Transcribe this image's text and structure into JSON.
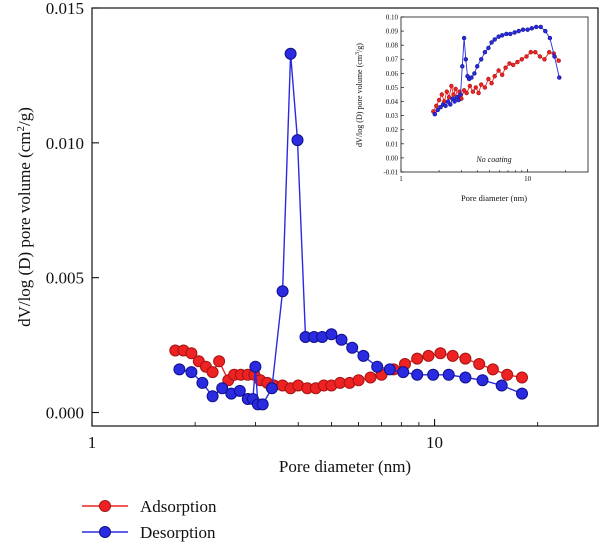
{
  "colors": {
    "adsorption": "#ee2222",
    "adsorption_edge": "#a51414",
    "desorption": "#2a2ae0",
    "desorption_edge": "#10108a"
  },
  "chart_data": [
    {
      "type": "line",
      "x_scale": "log",
      "xlabel": "Pore diameter (nm)",
      "ylabel": "dV/log (D) pore volume (cm2/g)",
      "ylabel_parts": {
        "main": "dV/log (D) pore volume (cm",
        "sup": "2",
        "end": "/g)"
      },
      "xlim": [
        1,
        30
      ],
      "ylim": [
        -0.0005,
        0.015
      ],
      "x_ticks": [
        1,
        10
      ],
      "x_tick_labels": [
        "1",
        "10"
      ],
      "y_ticks": [
        0.0,
        0.005,
        0.01,
        0.015
      ],
      "y_tick_labels": [
        "0.000",
        "0.005",
        "0.010",
        "0.015"
      ],
      "legend": {
        "position": "below-left",
        "entries": [
          "Adsorption",
          "Desorption"
        ]
      },
      "series": [
        {
          "name": "Adsorption",
          "x": [
            1.75,
            1.85,
            1.95,
            2.05,
            2.15,
            2.25,
            2.35,
            2.5,
            2.6,
            2.72,
            2.85,
            2.98,
            3.1,
            3.25,
            3.4,
            3.6,
            3.8,
            4.0,
            4.25,
            4.5,
            4.75,
            5.0,
            5.3,
            5.65,
            6.0,
            6.5,
            7.0,
            7.6,
            8.2,
            8.9,
            9.6,
            10.4,
            11.3,
            12.3,
            13.5,
            14.8,
            16.3,
            18.0
          ],
          "y": [
            0.0023,
            0.0023,
            0.0022,
            0.0019,
            0.0017,
            0.0015,
            0.0019,
            0.0012,
            0.0014,
            0.0014,
            0.0014,
            0.0014,
            0.0012,
            0.0011,
            0.001,
            0.001,
            0.0009,
            0.001,
            0.0009,
            0.0009,
            0.001,
            0.001,
            0.0011,
            0.0011,
            0.0012,
            0.0013,
            0.0014,
            0.0016,
            0.0018,
            0.002,
            0.0021,
            0.0022,
            0.0021,
            0.002,
            0.0018,
            0.0016,
            0.0014,
            0.0013
          ]
        },
        {
          "name": "Desorption",
          "x": [
            1.8,
            1.95,
            2.1,
            2.25,
            2.4,
            2.55,
            2.7,
            2.85,
            2.95,
            3.0,
            3.05,
            3.15,
            3.35,
            3.6,
            3.8,
            3.98,
            4.2,
            4.45,
            4.7,
            5.0,
            5.35,
            5.75,
            6.2,
            6.8,
            7.4,
            8.1,
            8.9,
            9.9,
            11.0,
            12.3,
            13.8,
            15.7,
            18.0
          ],
          "y": [
            0.0016,
            0.0015,
            0.0011,
            0.0006,
            0.0009,
            0.0007,
            0.0008,
            0.0005,
            0.0005,
            0.0017,
            0.0003,
            0.0003,
            0.0009,
            0.0045,
            0.0133,
            0.0101,
            0.0028,
            0.0028,
            0.0028,
            0.0029,
            0.0027,
            0.0024,
            0.0021,
            0.0017,
            0.0016,
            0.0015,
            0.0014,
            0.0014,
            0.0014,
            0.0013,
            0.0012,
            0.001,
            0.0007
          ]
        }
      ]
    },
    {
      "type": "line",
      "x_scale": "log",
      "xlabel": "Pore diameter (nm)",
      "ylabel": "dV/log (D) pore volume (cm3/g)",
      "ylabel_parts": {
        "main": "dV/log (D) pore volume (cm",
        "sup": "3",
        "end": "/g)"
      },
      "annotation": "No coating",
      "xlim": [
        1,
        30
      ],
      "ylim": [
        -0.01,
        0.1
      ],
      "x_ticks": [
        1,
        10
      ],
      "x_tick_labels": [
        "1",
        "10"
      ],
      "y_ticks": [
        -0.01,
        0.0,
        0.01,
        0.02,
        0.03,
        0.04,
        0.05,
        0.06,
        0.07,
        0.08,
        0.09,
        0.1
      ],
      "y_tick_labels": [
        "-0.01",
        "0.00",
        "0.01",
        "0.02",
        "0.03",
        "0.04",
        "0.05",
        "0.06",
        "0.07",
        "0.08",
        "0.09",
        "0.10"
      ],
      "series": [
        {
          "name": "Adsorption",
          "x": [
            1.8,
            1.9,
            2.0,
            2.1,
            2.2,
            2.3,
            2.4,
            2.5,
            2.6,
            2.7,
            2.8,
            2.9,
            3.0,
            3.15,
            3.3,
            3.5,
            3.7,
            3.9,
            4.1,
            4.3,
            4.6,
            4.9,
            5.2,
            5.5,
            5.9,
            6.3,
            6.7,
            7.2,
            7.7,
            8.3,
            9.0,
            9.8,
            10.6,
            11.5,
            12.5,
            13.6,
            14.8,
            16.1,
            17.6
          ],
          "y": [
            0.033,
            0.037,
            0.041,
            0.045,
            0.04,
            0.047,
            0.043,
            0.051,
            0.045,
            0.049,
            0.043,
            0.047,
            0.042,
            0.048,
            0.046,
            0.051,
            0.047,
            0.05,
            0.046,
            0.052,
            0.05,
            0.056,
            0.053,
            0.058,
            0.062,
            0.059,
            0.064,
            0.067,
            0.066,
            0.068,
            0.07,
            0.072,
            0.075,
            0.075,
            0.072,
            0.07,
            0.075,
            0.074,
            0.069
          ]
        },
        {
          "name": "Desorption",
          "x": [
            1.85,
            1.95,
            2.05,
            2.15,
            2.25,
            2.35,
            2.45,
            2.55,
            2.65,
            2.75,
            2.85,
            2.95,
            3.05,
            3.15,
            3.25,
            3.35,
            3.45,
            3.6,
            3.8,
            4.0,
            4.3,
            4.6,
            4.9,
            5.2,
            5.5,
            5.9,
            6.3,
            6.8,
            7.3,
            7.9,
            8.5,
            9.2,
            10.0,
            10.8,
            11.7,
            12.7,
            13.8,
            15.0,
            16.3,
            17.8
          ],
          "y": [
            0.031,
            0.034,
            0.036,
            0.038,
            0.037,
            0.04,
            0.038,
            0.042,
            0.04,
            0.043,
            0.041,
            0.045,
            0.065,
            0.085,
            0.07,
            0.058,
            0.056,
            0.057,
            0.06,
            0.065,
            0.07,
            0.075,
            0.078,
            0.082,
            0.084,
            0.086,
            0.087,
            0.088,
            0.088,
            0.089,
            0.09,
            0.091,
            0.091,
            0.092,
            0.093,
            0.093,
            0.09,
            0.085,
            0.072,
            0.057
          ]
        }
      ]
    }
  ]
}
